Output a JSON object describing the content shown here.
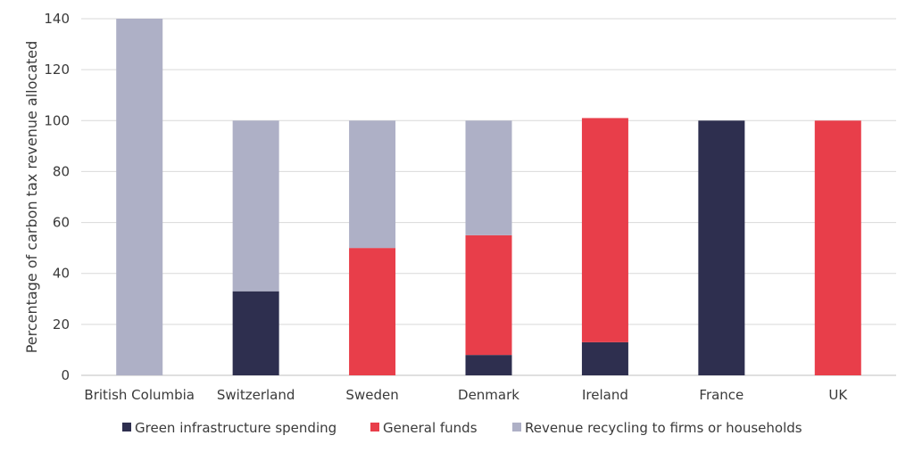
{
  "chart_data": {
    "type": "bar",
    "stacked": true,
    "title": "",
    "xlabel": "",
    "ylabel": "Percentage of carbon tax revenue allocated",
    "ylim": [
      0,
      140
    ],
    "yticks": [
      0,
      20,
      40,
      60,
      80,
      100,
      120,
      140
    ],
    "grid": true,
    "legend_position": "bottom",
    "categories": [
      "British Columbia",
      "Switzerland",
      "Sweden",
      "Denmark",
      "Ireland",
      "France",
      "UK"
    ],
    "series": [
      {
        "name": "Green infrastructure spending",
        "color": "#2e2f4f",
        "values": [
          0,
          33,
          0,
          8,
          13,
          100,
          0
        ]
      },
      {
        "name": "General funds",
        "color": "#e83e4a",
        "values": [
          0,
          0,
          50,
          47,
          88,
          0,
          100
        ]
      },
      {
        "name": "Revenue recycling to firms or households",
        "color": "#aeb0c6",
        "values": [
          140,
          67,
          50,
          45,
          0,
          0,
          0
        ]
      }
    ]
  }
}
